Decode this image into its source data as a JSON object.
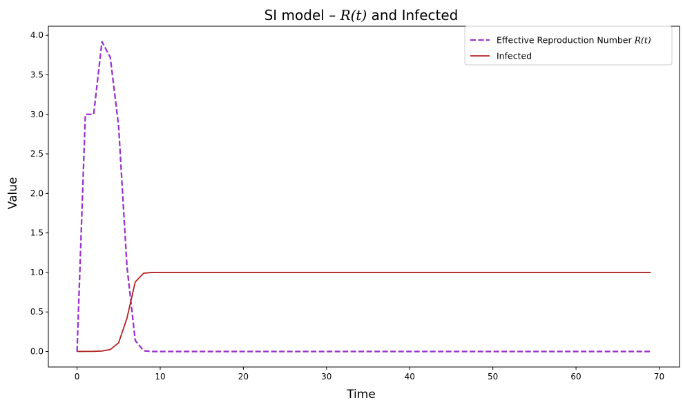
{
  "chart_data": {
    "type": "line",
    "title": "SI model – R(t) and Infected",
    "title_parts": {
      "pre": "SI model – ",
      "math": "R(t)",
      "post": " and Infected"
    },
    "xlabel": "Time",
    "ylabel": "Value",
    "xlim": [
      -3.45,
      72.45
    ],
    "ylim": [
      -0.196,
      4.115
    ],
    "xticks": [
      0,
      10,
      20,
      30,
      40,
      50,
      60,
      70
    ],
    "xtick_labels": [
      "0",
      "10",
      "20",
      "30",
      "40",
      "50",
      "60",
      "70"
    ],
    "yticks": [
      0.0,
      0.5,
      1.0,
      1.5,
      2.0,
      2.5,
      3.0,
      3.5,
      4.0
    ],
    "ytick_labels": [
      "0.0",
      "0.5",
      "1.0",
      "1.5",
      "2.0",
      "2.5",
      "3.0",
      "3.5",
      "4.0"
    ],
    "grid": false,
    "legend_position": "top-right",
    "series": [
      {
        "name": "Effective Reproduction Number R(t)",
        "legend_parts": {
          "pre": "Effective Reproduction Number ",
          "math": "R(t)"
        },
        "color": "#9932CC",
        "style": "dashed",
        "x": [
          0,
          1,
          2,
          3,
          4,
          5,
          6,
          7,
          8,
          9,
          10,
          11,
          12,
          13,
          14,
          15,
          16,
          17,
          18,
          19,
          20,
          21,
          22,
          23,
          24,
          25,
          26,
          27,
          28,
          29,
          30,
          31,
          32,
          33,
          34,
          35,
          36,
          37,
          38,
          39,
          40,
          41,
          42,
          43,
          44,
          45,
          46,
          47,
          48,
          49,
          50,
          51,
          52,
          53,
          54,
          55,
          56,
          57,
          58,
          59,
          60,
          61,
          62,
          63,
          64,
          65,
          66,
          67,
          68,
          69
        ],
        "y": [
          0.0,
          3.0,
          3.0,
          3.92,
          3.72,
          2.85,
          1.08,
          0.14,
          0.01,
          0.0,
          0.0,
          0.0,
          0.0,
          0.0,
          0.0,
          0.0,
          0.0,
          0.0,
          0.0,
          0.0,
          0.0,
          0.0,
          0.0,
          0.0,
          0.0,
          0.0,
          0.0,
          0.0,
          0.0,
          0.0,
          0.0,
          0.0,
          0.0,
          0.0,
          0.0,
          0.0,
          0.0,
          0.0,
          0.0,
          0.0,
          0.0,
          0.0,
          0.0,
          0.0,
          0.0,
          0.0,
          0.0,
          0.0,
          0.0,
          0.0,
          0.0,
          0.0,
          0.0,
          0.0,
          0.0,
          0.0,
          0.0,
          0.0,
          0.0,
          0.0,
          0.0,
          0.0,
          0.0,
          0.0,
          0.0,
          0.0,
          0.0,
          0.0,
          0.0,
          0.0
        ]
      },
      {
        "name": "Infected",
        "color": "#B22222",
        "style": "solid",
        "x": [
          0,
          1,
          2,
          3,
          4,
          5,
          6,
          7,
          8,
          9,
          10,
          11,
          12,
          13,
          14,
          15,
          16,
          17,
          18,
          19,
          20,
          21,
          22,
          23,
          24,
          25,
          26,
          27,
          28,
          29,
          30,
          31,
          32,
          33,
          34,
          35,
          36,
          37,
          38,
          39,
          40,
          41,
          42,
          43,
          44,
          45,
          46,
          47,
          48,
          49,
          50,
          51,
          52,
          53,
          54,
          55,
          56,
          57,
          58,
          59,
          60,
          61,
          62,
          63,
          64,
          65,
          66,
          67,
          68,
          69
        ],
        "y": [
          0.001,
          0.001,
          0.002,
          0.006,
          0.025,
          0.11,
          0.42,
          0.88,
          0.99,
          1.0,
          1.0,
          1.0,
          1.0,
          1.0,
          1.0,
          1.0,
          1.0,
          1.0,
          1.0,
          1.0,
          1.0,
          1.0,
          1.0,
          1.0,
          1.0,
          1.0,
          1.0,
          1.0,
          1.0,
          1.0,
          1.0,
          1.0,
          1.0,
          1.0,
          1.0,
          1.0,
          1.0,
          1.0,
          1.0,
          1.0,
          1.0,
          1.0,
          1.0,
          1.0,
          1.0,
          1.0,
          1.0,
          1.0,
          1.0,
          1.0,
          1.0,
          1.0,
          1.0,
          1.0,
          1.0,
          1.0,
          1.0,
          1.0,
          1.0,
          1.0,
          1.0,
          1.0,
          1.0,
          1.0,
          1.0,
          1.0,
          1.0,
          1.0,
          1.0,
          1.0
        ]
      }
    ]
  }
}
